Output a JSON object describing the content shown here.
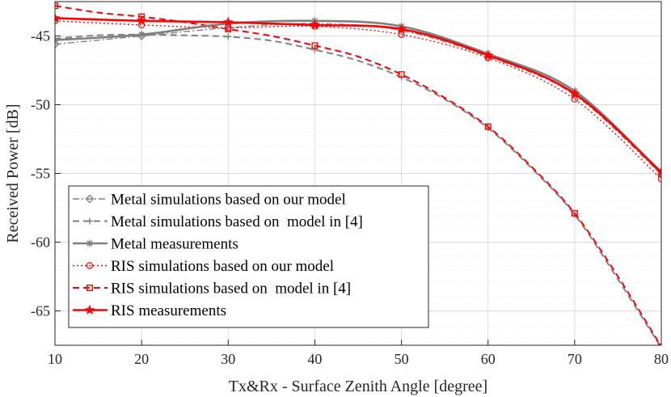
{
  "chart_data": {
    "type": "line",
    "title": "",
    "xlabel": "Tx&Rx - Surface Zenith Angle [degree]",
    "ylabel": "Received Power [dB]",
    "xlim": [
      10,
      80
    ],
    "ylim": [
      -67.5,
      -42.5
    ],
    "x_ticks": [
      10,
      20,
      30,
      40,
      50,
      60,
      70,
      80
    ],
    "x_tick_labels": [
      "10",
      "20",
      "30",
      "40",
      "50",
      "60",
      "70",
      "80"
    ],
    "y_ticks": [
      -65,
      -60,
      -55,
      -50,
      -45
    ],
    "y_tick_labels": [
      "-65",
      "-60",
      "-55",
      "-50",
      "-45"
    ],
    "y_minor_step": 1,
    "grid": true,
    "legend_position": "bottom-left",
    "series": [
      {
        "name": "Metal simulations based on our model",
        "color": "#808080",
        "dash": "dashdot",
        "marker": "diamond",
        "x": [
          10,
          20,
          30,
          40,
          50,
          60,
          70,
          80
        ],
        "y": [
          -45.6,
          -45.0,
          -44.4,
          -44.1,
          -44.6,
          -46.5,
          -49.3,
          -55.1
        ]
      },
      {
        "name": "Metal simulations based on  model in [4]",
        "color": "#808080",
        "dash": "dashed",
        "marker": "plus",
        "x": [
          10,
          15,
          20,
          25,
          30,
          35,
          40,
          45,
          50,
          55,
          60,
          65,
          70,
          75,
          80
        ],
        "y": [
          -45.2,
          -44.95,
          -44.9,
          -44.95,
          -45.05,
          -45.35,
          -46.0,
          -46.8,
          -48.0,
          -49.6,
          -51.7,
          -54.6,
          -58.0,
          -62.7,
          -67.7
        ],
        "marker_x": [
          10,
          20,
          30,
          40,
          50,
          60,
          70,
          80
        ],
        "marker_y": [
          -45.2,
          -44.9,
          -45.05,
          -46.0,
          -48.0,
          -51.7,
          -58.0,
          -67.7
        ]
      },
      {
        "name": "Metal measurements",
        "color": "#808080",
        "dash": "solid",
        "marker": "asterisk",
        "x": [
          10,
          20,
          30,
          40,
          50,
          60,
          70,
          80
        ],
        "y": [
          -45.3,
          -44.9,
          -44.1,
          -43.9,
          -44.3,
          -46.3,
          -49.0,
          -55.0
        ]
      },
      {
        "name": "RIS simulations based on our model",
        "color": "#ff0000",
        "dash": "dotted",
        "marker": "circle",
        "x": [
          10,
          20,
          30,
          40,
          50,
          60,
          70,
          80
        ],
        "y": [
          -43.9,
          -44.2,
          -44.4,
          -44.3,
          -44.9,
          -46.6,
          -49.6,
          -55.4
        ]
      },
      {
        "name": "RIS simulations based on  model in [4]",
        "color": "#ff0000",
        "dash": "dashed",
        "marker": "square",
        "x": [
          10,
          15,
          20,
          25,
          30,
          35,
          40,
          45,
          50,
          55,
          60,
          65,
          70,
          75,
          80
        ],
        "y": [
          -42.8,
          -43.3,
          -43.6,
          -44.0,
          -44.5,
          -45.0,
          -45.7,
          -46.5,
          -47.8,
          -49.5,
          -51.6,
          -54.5,
          -57.9,
          -62.5,
          -67.6
        ],
        "marker_x": [
          10,
          20,
          30,
          40,
          50,
          60,
          70,
          80
        ],
        "marker_y": [
          -42.8,
          -43.6,
          -44.5,
          -45.7,
          -47.8,
          -51.6,
          -57.9,
          -67.6
        ]
      },
      {
        "name": "RIS measurements",
        "color": "#ff0000",
        "dash": "solid",
        "marker": "star",
        "x": [
          10,
          20,
          30,
          40,
          50,
          60,
          70,
          80
        ],
        "y": [
          -43.7,
          -43.9,
          -44.0,
          -44.2,
          -44.5,
          -46.4,
          -49.2,
          -54.9
        ]
      }
    ]
  }
}
